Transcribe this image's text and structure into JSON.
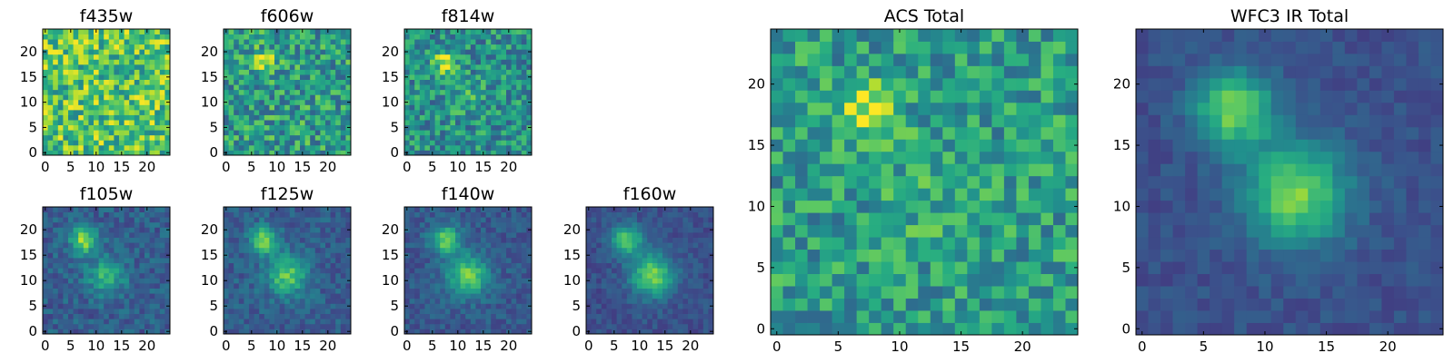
{
  "chart_data": [
    {
      "type": "heatmap",
      "title": "f435w",
      "x_ticks": [
        0,
        5,
        10,
        15,
        20
      ],
      "y_ticks": [
        0,
        5,
        10,
        15,
        20
      ],
      "xlim": [
        -0.5,
        24.5
      ],
      "ylim": [
        -0.5,
        24.5
      ],
      "grid_size": 25,
      "colormap": "viridis",
      "features": [],
      "noise": 0.55,
      "base": 0.72,
      "seed": 11
    },
    {
      "type": "heatmap",
      "title": "f606w",
      "x_ticks": [
        0,
        5,
        10,
        15,
        20
      ],
      "y_ticks": [
        0,
        5,
        10,
        15,
        20
      ],
      "xlim": [
        -0.5,
        24.5
      ],
      "ylim": [
        -0.5,
        24.5
      ],
      "grid_size": 25,
      "colormap": "viridis",
      "features": [
        {
          "x": 7.5,
          "y": 18,
          "amp": 0.35,
          "sigma": 1.6
        }
      ],
      "noise": 0.5,
      "base": 0.55,
      "seed": 23
    },
    {
      "type": "heatmap",
      "title": "f814w",
      "x_ticks": [
        0,
        5,
        10,
        15,
        20
      ],
      "y_ticks": [
        0,
        5,
        10,
        15,
        20
      ],
      "xlim": [
        -0.5,
        24.5
      ],
      "ylim": [
        -0.5,
        24.5
      ],
      "grid_size": 25,
      "colormap": "viridis",
      "features": [
        {
          "x": 7.5,
          "y": 18,
          "amp": 0.45,
          "sigma": 1.6
        },
        {
          "x": 12,
          "y": 11,
          "amp": 0.12,
          "sigma": 2.5
        }
      ],
      "noise": 0.45,
      "base": 0.5,
      "seed": 37
    },
    {
      "type": "heatmap",
      "title": "f105w",
      "x_ticks": [
        0,
        5,
        10,
        15,
        20
      ],
      "y_ticks": [
        0,
        5,
        10,
        15,
        20
      ],
      "xlim": [
        -0.5,
        24.5
      ],
      "ylim": [
        -0.5,
        24.5
      ],
      "grid_size": 25,
      "colormap": "viridis",
      "features": [
        {
          "x": 7.5,
          "y": 18,
          "amp": 0.55,
          "sigma": 1.8
        },
        {
          "x": 12,
          "y": 11,
          "amp": 0.35,
          "sigma": 2.6
        }
      ],
      "noise": 0.22,
      "base": 0.3,
      "seed": 41
    },
    {
      "type": "heatmap",
      "title": "f125w",
      "x_ticks": [
        0,
        5,
        10,
        15,
        20
      ],
      "y_ticks": [
        0,
        5,
        10,
        15,
        20
      ],
      "xlim": [
        -0.5,
        24.5
      ],
      "ylim": [
        -0.5,
        24.5
      ],
      "grid_size": 25,
      "colormap": "viridis",
      "features": [
        {
          "x": 7.5,
          "y": 18,
          "amp": 0.5,
          "sigma": 1.9
        },
        {
          "x": 12,
          "y": 11,
          "amp": 0.45,
          "sigma": 2.7
        }
      ],
      "noise": 0.2,
      "base": 0.3,
      "seed": 53
    },
    {
      "type": "heatmap",
      "title": "f140w",
      "x_ticks": [
        0,
        5,
        10,
        15,
        20
      ],
      "y_ticks": [
        0,
        5,
        10,
        15,
        20
      ],
      "xlim": [
        -0.5,
        24.5
      ],
      "ylim": [
        -0.5,
        24.5
      ],
      "grid_size": 25,
      "colormap": "viridis",
      "features": [
        {
          "x": 7.5,
          "y": 18,
          "amp": 0.5,
          "sigma": 2.0
        },
        {
          "x": 12,
          "y": 11,
          "amp": 0.5,
          "sigma": 2.8
        }
      ],
      "noise": 0.18,
      "base": 0.28,
      "seed": 67
    },
    {
      "type": "heatmap",
      "title": "f160w",
      "x_ticks": [
        0,
        5,
        10,
        15,
        20
      ],
      "y_ticks": [
        0,
        5,
        10,
        15,
        20
      ],
      "xlim": [
        -0.5,
        24.5
      ],
      "ylim": [
        -0.5,
        24.5
      ],
      "grid_size": 25,
      "colormap": "viridis",
      "features": [
        {
          "x": 7.5,
          "y": 18,
          "amp": 0.5,
          "sigma": 2.1
        },
        {
          "x": 12.5,
          "y": 11,
          "amp": 0.55,
          "sigma": 2.9
        }
      ],
      "noise": 0.15,
      "base": 0.25,
      "seed": 79
    },
    {
      "type": "heatmap",
      "title": "ACS Total",
      "x_ticks": [
        0,
        5,
        10,
        15,
        20
      ],
      "y_ticks": [
        0,
        5,
        10,
        15,
        20
      ],
      "xlim": [
        -0.5,
        24.5
      ],
      "ylim": [
        -0.5,
        24.5
      ],
      "grid_size": 25,
      "colormap": "viridis",
      "features": [
        {
          "x": 7.5,
          "y": 18,
          "amp": 0.4,
          "sigma": 1.6
        },
        {
          "x": 12,
          "y": 11,
          "amp": 0.08,
          "sigma": 2.5
        }
      ],
      "noise": 0.42,
      "base": 0.55,
      "seed": 97
    },
    {
      "type": "heatmap",
      "title": "WFC3 IR Total",
      "x_ticks": [
        0,
        5,
        10,
        15,
        20
      ],
      "y_ticks": [
        0,
        5,
        10,
        15,
        20
      ],
      "xlim": [
        -0.5,
        24.5
      ],
      "ylim": [
        -0.5,
        24.5
      ],
      "grid_size": 25,
      "colormap": "viridis",
      "features": [
        {
          "x": 7.5,
          "y": 18,
          "amp": 0.55,
          "sigma": 2.2
        },
        {
          "x": 12.5,
          "y": 11,
          "amp": 0.55,
          "sigma": 2.9
        }
      ],
      "noise": 0.12,
      "base": 0.25,
      "seed": 113
    }
  ]
}
